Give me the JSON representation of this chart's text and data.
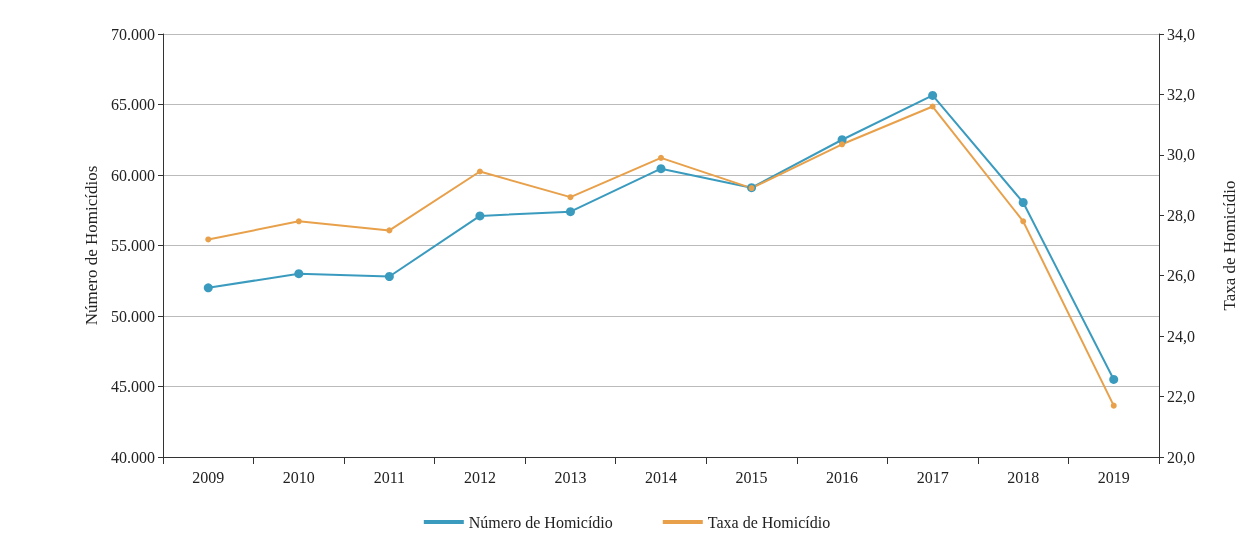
{
  "chart_data": {
    "type": "line",
    "ylabel": "Número de Homicídios",
    "y2label": "Taxa de Homicídio",
    "categories": [
      "2009",
      "2010",
      "2011",
      "2012",
      "2013",
      "2014",
      "2015",
      "2016",
      "2017",
      "2018",
      "2019"
    ],
    "series": [
      {
        "name": "Número de Homicídio",
        "color": "#3a9bbf",
        "values": [
          52000,
          53000,
          52800,
          57100,
          57400,
          60450,
          59100,
          62500,
          65640,
          58050,
          45500
        ]
      },
      {
        "name": "Taxa de Homicídio",
        "color": "#e8a04a",
        "axis": "y2",
        "values": [
          27.2,
          27.8,
          27.5,
          29.45,
          28.6,
          29.9,
          28.9,
          30.35,
          31.6,
          27.8,
          21.7
        ]
      }
    ],
    "ylim": [
      40000,
      70000
    ],
    "yticks": [
      {
        "value": 40000,
        "label": "40.000"
      },
      {
        "value": 45000,
        "label": "45.000"
      },
      {
        "value": 50000,
        "label": "50.000"
      },
      {
        "value": 55000,
        "label": "55.000"
      },
      {
        "value": 60000,
        "label": "60.000"
      },
      {
        "value": 65000,
        "label": "65.000"
      },
      {
        "value": 70000,
        "label": "70.000"
      }
    ],
    "y2lim": [
      20,
      34
    ],
    "y2ticks": [
      {
        "value": 20,
        "label": "20,0"
      },
      {
        "value": 22,
        "label": "22,0"
      },
      {
        "value": 24,
        "label": "24,0"
      },
      {
        "value": 26,
        "label": "26,0"
      },
      {
        "value": 28,
        "label": "28,0"
      },
      {
        "value": 30,
        "label": "30,0"
      },
      {
        "value": 32,
        "label": "32,0"
      },
      {
        "value": 34,
        "label": "34,0"
      }
    ],
    "grid": "y",
    "legend": "bottom",
    "marker": "circle",
    "line_style": "solid"
  }
}
